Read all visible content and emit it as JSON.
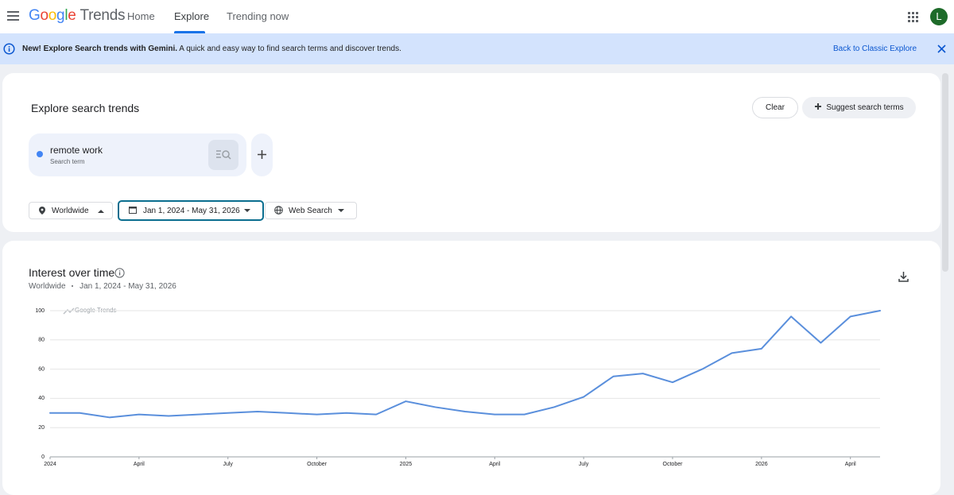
{
  "header": {
    "logo_letters": [
      "G",
      "o",
      "o",
      "g",
      "l",
      "e"
    ],
    "logo_product": "Trends",
    "nav": [
      "Home",
      "Explore",
      "Trending now"
    ],
    "avatar": "L"
  },
  "banner": {
    "bold": "New! Explore Search trends with Gemini.",
    "text": "A quick and easy way to find search terms and discover trends.",
    "link": "Back to Classic Explore"
  },
  "explore": {
    "title": "Explore search trends",
    "clear": "Clear",
    "suggest": "Suggest search terms",
    "term": "remote work",
    "term_type": "Search term",
    "location": "Worldwide",
    "date_range": "Jan 1, 2024 - May 31, 2026",
    "search_type": "Web Search"
  },
  "interest": {
    "title": "Interest over time",
    "location": "Worldwide",
    "date_range": "Jan 1, 2024 - May 31, 2026"
  },
  "chart_data": {
    "type": "line",
    "watermark": "Google Trends",
    "categories": [
      "2024",
      null,
      null,
      "April",
      null,
      null,
      "July",
      null,
      null,
      "October",
      null,
      null,
      "2025",
      null,
      null,
      "April",
      null,
      null,
      "July",
      null,
      null,
      "October",
      null,
      null,
      "2026",
      null,
      null,
      "April",
      null
    ],
    "values": [
      30,
      30,
      27,
      29,
      28,
      29,
      30,
      31,
      30,
      29,
      30,
      29,
      38,
      34,
      31,
      29,
      29,
      34,
      41,
      55,
      57,
      51,
      60,
      71,
      74,
      96,
      78,
      96,
      100
    ],
    "color": "#5a8fdc",
    "ylim": [
      0,
      100
    ],
    "yticks": [
      0,
      20,
      40,
      60,
      80,
      100
    ],
    "grid": true
  }
}
